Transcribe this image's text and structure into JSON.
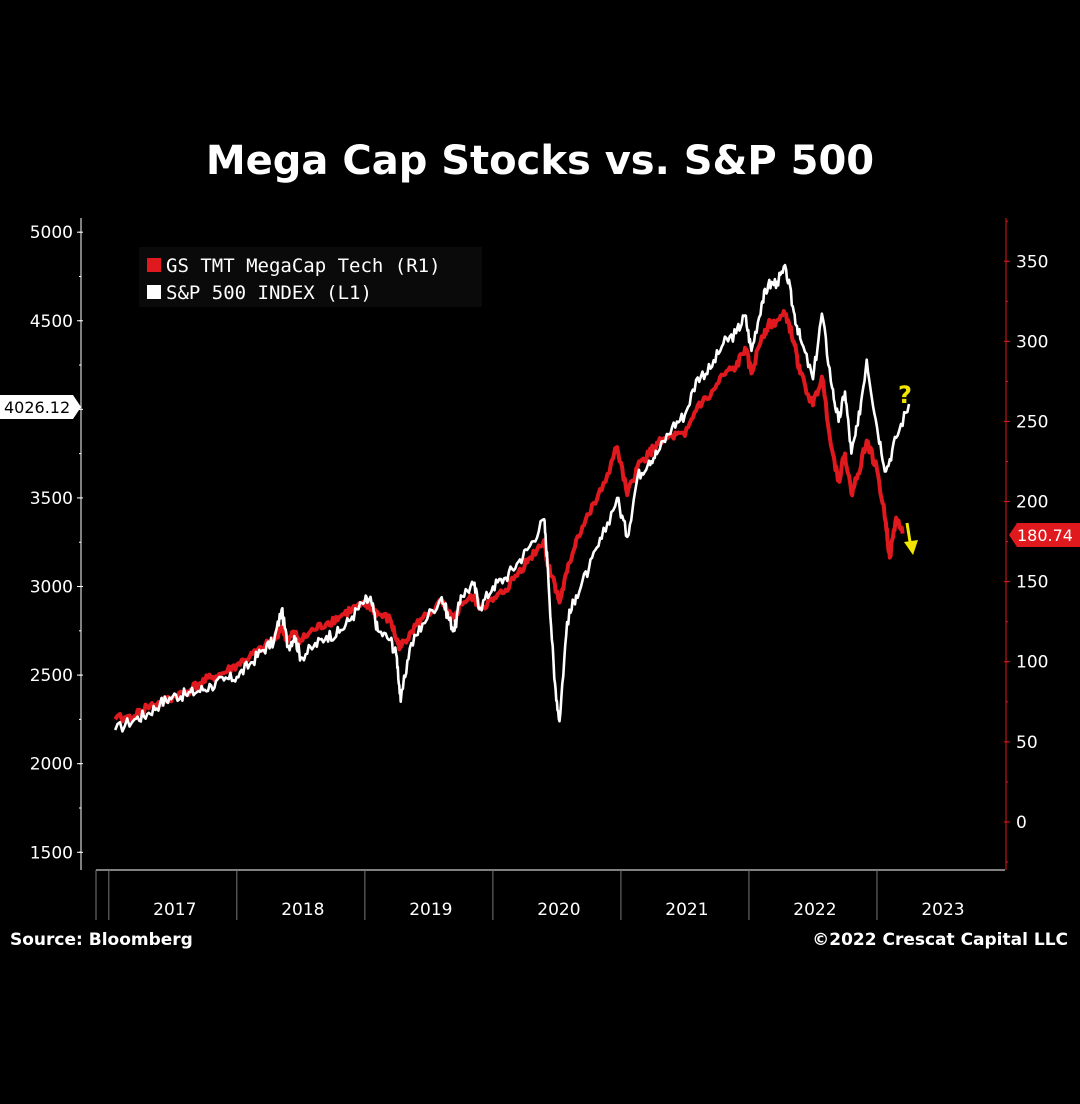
{
  "chart_data": {
    "type": "line",
    "title": "Mega Cap Stocks vs. S&P 500",
    "left_axis": {
      "ticks": [
        1500,
        2000,
        2500,
        3000,
        3500,
        4000,
        4500,
        5000
      ],
      "tick_labels": [
        "1500",
        "2000",
        "2500",
        "3000",
        "3500",
        "",
        "4500",
        "5000"
      ],
      "range": [
        1400,
        5080
      ]
    },
    "right_axis": {
      "ticks": [
        0,
        50,
        100,
        150,
        200,
        250,
        300,
        350
      ],
      "tick_labels": [
        "0",
        "50",
        "100",
        "150",
        "200",
        "250",
        "300",
        "350"
      ],
      "range": [
        -30,
        377
      ]
    },
    "x_axis": {
      "tick_labels": [
        "2017",
        "2018",
        "2019",
        "2020",
        "2021",
        "2022",
        "2023"
      ],
      "range": [
        2016.6,
        2023.7
      ]
    },
    "series": [
      {
        "name": "S&P 500 INDEX (L1)",
        "axis": "left",
        "color": "#ffffff",
        "points": [
          [
            2016.75,
            2190
          ],
          [
            2016.9,
            2250
          ],
          [
            2017.0,
            2280
          ],
          [
            2017.1,
            2340
          ],
          [
            2017.2,
            2380
          ],
          [
            2017.3,
            2390
          ],
          [
            2017.4,
            2410
          ],
          [
            2017.5,
            2440
          ],
          [
            2017.6,
            2470
          ],
          [
            2017.7,
            2490
          ],
          [
            2017.8,
            2560
          ],
          [
            2017.9,
            2640
          ],
          [
            2017.99,
            2690
          ],
          [
            2018.05,
            2870
          ],
          [
            2018.1,
            2660
          ],
          [
            2018.15,
            2720
          ],
          [
            2018.2,
            2600
          ],
          [
            2018.3,
            2660
          ],
          [
            2018.4,
            2720
          ],
          [
            2018.5,
            2740
          ],
          [
            2018.6,
            2830
          ],
          [
            2018.7,
            2920
          ],
          [
            2018.75,
            2915
          ],
          [
            2018.8,
            2750
          ],
          [
            2018.9,
            2700
          ],
          [
            2018.95,
            2600
          ],
          [
            2018.98,
            2350
          ],
          [
            2019.05,
            2650
          ],
          [
            2019.15,
            2790
          ],
          [
            2019.3,
            2940
          ],
          [
            2019.35,
            2830
          ],
          [
            2019.4,
            2750
          ],
          [
            2019.45,
            2950
          ],
          [
            2019.55,
            3010
          ],
          [
            2019.6,
            2880
          ],
          [
            2019.7,
            3000
          ],
          [
            2019.8,
            3050
          ],
          [
            2019.9,
            3140
          ],
          [
            2019.99,
            3230
          ],
          [
            2020.1,
            3380
          ],
          [
            2020.13,
            3100
          ],
          [
            2020.18,
            2480
          ],
          [
            2020.22,
            2240
          ],
          [
            2020.28,
            2800
          ],
          [
            2020.35,
            2950
          ],
          [
            2020.45,
            3100
          ],
          [
            2020.55,
            3270
          ],
          [
            2020.67,
            3500
          ],
          [
            2020.75,
            3280
          ],
          [
            2020.83,
            3620
          ],
          [
            2020.92,
            3710
          ],
          [
            2020.99,
            3760
          ],
          [
            2021.1,
            3900
          ],
          [
            2021.2,
            3970
          ],
          [
            2021.3,
            4180
          ],
          [
            2021.4,
            4230
          ],
          [
            2021.5,
            4370
          ],
          [
            2021.6,
            4430
          ],
          [
            2021.67,
            4530
          ],
          [
            2021.72,
            4330
          ],
          [
            2021.8,
            4600
          ],
          [
            2021.85,
            4700
          ],
          [
            2021.92,
            4720
          ],
          [
            2021.99,
            4790
          ],
          [
            2022.05,
            4550
          ],
          [
            2022.1,
            4400
          ],
          [
            2022.2,
            4170
          ],
          [
            2022.27,
            4540
          ],
          [
            2022.35,
            4120
          ],
          [
            2022.4,
            3930
          ],
          [
            2022.45,
            4100
          ],
          [
            2022.5,
            3750
          ],
          [
            2022.55,
            3910
          ],
          [
            2022.62,
            4280
          ],
          [
            2022.7,
            3900
          ],
          [
            2022.77,
            3650
          ],
          [
            2022.85,
            3840
          ],
          [
            2022.95,
            4030
          ]
        ]
      },
      {
        "name": "GS TMT MegaCap Tech (R1)",
        "axis": "right",
        "color": "#e0191e",
        "points": [
          [
            2016.75,
            64
          ],
          [
            2016.9,
            66
          ],
          [
            2017.0,
            72
          ],
          [
            2017.1,
            74
          ],
          [
            2017.2,
            78
          ],
          [
            2017.3,
            81
          ],
          [
            2017.4,
            86
          ],
          [
            2017.5,
            90
          ],
          [
            2017.6,
            93
          ],
          [
            2017.7,
            98
          ],
          [
            2017.8,
            103
          ],
          [
            2017.9,
            108
          ],
          [
            2017.99,
            114
          ],
          [
            2018.05,
            122
          ],
          [
            2018.1,
            113
          ],
          [
            2018.15,
            118
          ],
          [
            2018.2,
            113
          ],
          [
            2018.3,
            120
          ],
          [
            2018.4,
            124
          ],
          [
            2018.5,
            128
          ],
          [
            2018.6,
            133
          ],
          [
            2018.7,
            135
          ],
          [
            2018.75,
            134
          ],
          [
            2018.8,
            130
          ],
          [
            2018.9,
            126
          ],
          [
            2018.95,
            113
          ],
          [
            2018.98,
            109
          ],
          [
            2019.05,
            118
          ],
          [
            2019.15,
            127
          ],
          [
            2019.3,
            137
          ],
          [
            2019.35,
            130
          ],
          [
            2019.4,
            126
          ],
          [
            2019.45,
            137
          ],
          [
            2019.55,
            140
          ],
          [
            2019.6,
            134
          ],
          [
            2019.7,
            138
          ],
          [
            2019.8,
            145
          ],
          [
            2019.9,
            156
          ],
          [
            2019.99,
            165
          ],
          [
            2020.1,
            176
          ],
          [
            2020.13,
            160
          ],
          [
            2020.18,
            150
          ],
          [
            2020.22,
            137
          ],
          [
            2020.28,
            156
          ],
          [
            2020.35,
            176
          ],
          [
            2020.45,
            192
          ],
          [
            2020.55,
            207
          ],
          [
            2020.67,
            234
          ],
          [
            2020.75,
            204
          ],
          [
            2020.83,
            222
          ],
          [
            2020.92,
            230
          ],
          [
            2020.99,
            236
          ],
          [
            2021.1,
            241
          ],
          [
            2021.2,
            241
          ],
          [
            2021.3,
            260
          ],
          [
            2021.4,
            266
          ],
          [
            2021.5,
            279
          ],
          [
            2021.6,
            284
          ],
          [
            2021.67,
            296
          ],
          [
            2021.72,
            280
          ],
          [
            2021.8,
            303
          ],
          [
            2021.85,
            310
          ],
          [
            2021.92,
            313
          ],
          [
            2021.99,
            317
          ],
          [
            2022.05,
            300
          ],
          [
            2022.1,
            280
          ],
          [
            2022.2,
            260
          ],
          [
            2022.27,
            278
          ],
          [
            2022.35,
            232
          ],
          [
            2022.4,
            213
          ],
          [
            2022.45,
            230
          ],
          [
            2022.5,
            205
          ],
          [
            2022.55,
            217
          ],
          [
            2022.62,
            238
          ],
          [
            2022.7,
            220
          ],
          [
            2022.77,
            187
          ],
          [
            2022.8,
            165
          ],
          [
            2022.85,
            190
          ],
          [
            2022.9,
            180
          ]
        ]
      }
    ],
    "left_last_value_label": "4026.12",
    "right_last_value_label": "180.74",
    "annotations": [
      "?",
      "down-arrow"
    ],
    "grid": false,
    "legend_position": "top-left"
  },
  "footer": {
    "source": "Source: Bloomberg",
    "copyright": "©2022 Crescat Capital LLC"
  },
  "colors": {
    "background": "#000000",
    "spx": "#ffffff",
    "megacap": "#e0191e",
    "annotation": "#f2e600"
  }
}
